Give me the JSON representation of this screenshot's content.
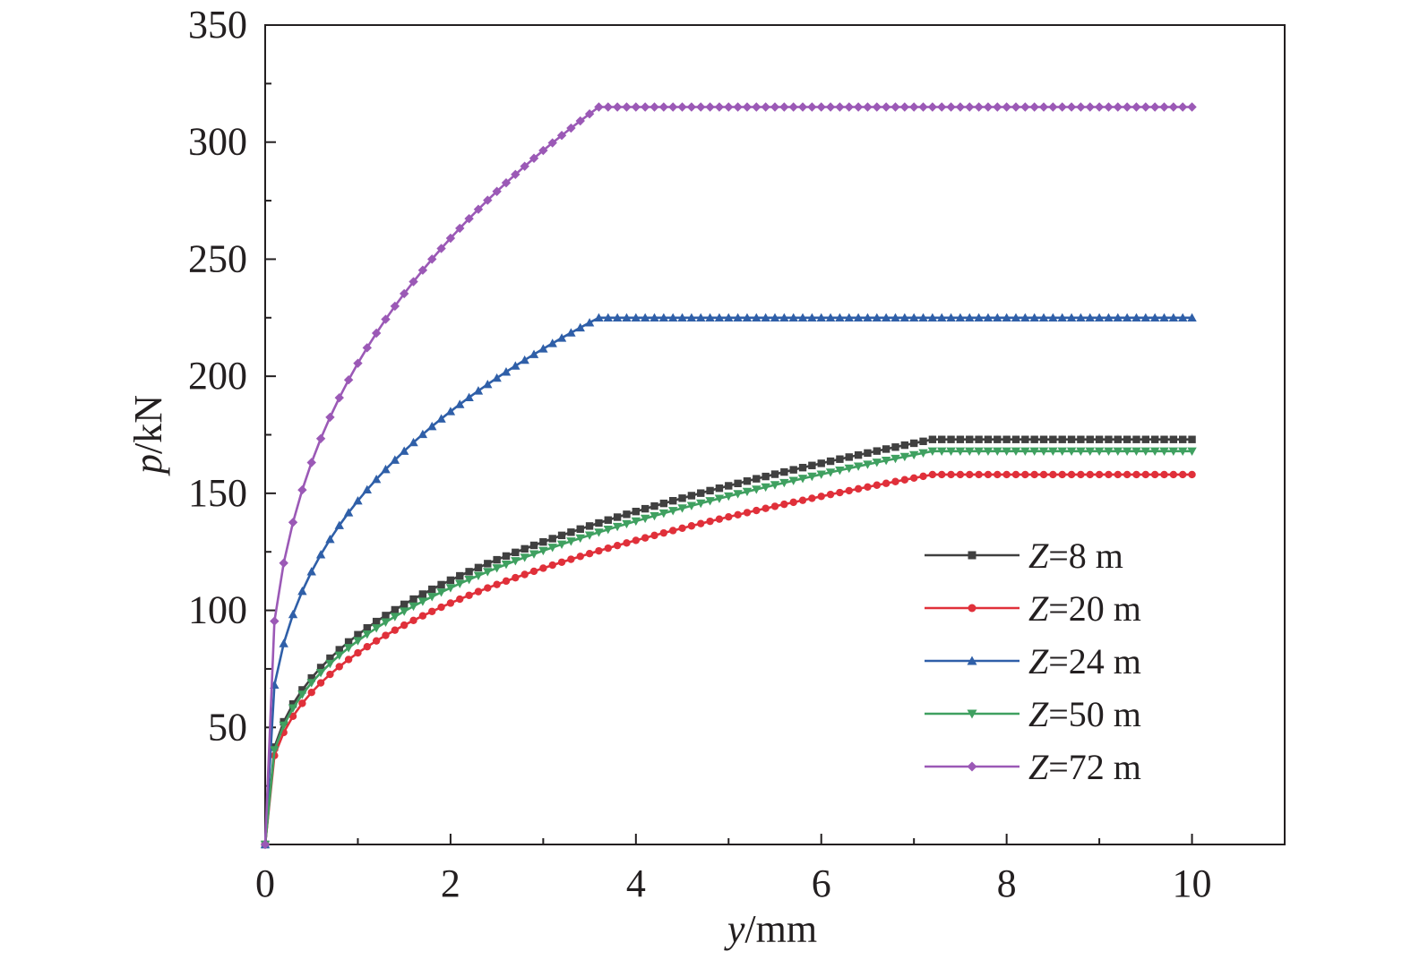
{
  "chart_data": {
    "type": "line",
    "title": "",
    "xlabel": {
      "var": "y",
      "unit": "/mm"
    },
    "ylabel": {
      "var": "p",
      "unit": "/kN"
    },
    "xlim": [
      0,
      11
    ],
    "ylim": [
      0,
      350
    ],
    "x_ticks": [
      0,
      2,
      4,
      6,
      8,
      10
    ],
    "x_tick_labels": [
      "0",
      "2",
      "4",
      "6",
      "8",
      "10"
    ],
    "y_ticks": [
      50,
      100,
      150,
      200,
      250,
      300,
      350
    ],
    "y_tick_labels": [
      "50",
      "100",
      "150",
      "200",
      "250",
      "300",
      "350"
    ],
    "grid": false,
    "legend_position": "right",
    "series": [
      {
        "name": "Z=8 m",
        "legend_var": "Z",
        "legend_rest": "=8 m",
        "color": "#404040",
        "marker": "square",
        "ult": 173,
        "yield_disp": 7.2,
        "n": 0.3333,
        "step": 0.1
      },
      {
        "name": "Z=20 m",
        "legend_var": "Z",
        "legend_rest": "=20 m",
        "color": "#e0303a",
        "marker": "circle",
        "ult": 158,
        "yield_disp": 7.2,
        "n": 0.3333,
        "step": 0.1
      },
      {
        "name": "Z=24 m",
        "legend_var": "Z",
        "legend_rest": "=24 m",
        "color": "#2f5fa8",
        "marker": "triangle-up",
        "ult": 225,
        "yield_disp": 3.6,
        "n": 0.3333,
        "step": 0.1
      },
      {
        "name": "Z=50 m",
        "legend_var": "Z",
        "legend_rest": "=50 m",
        "color": "#3fa060",
        "marker": "triangle-down",
        "ult": 168,
        "yield_disp": 7.2,
        "n": 0.3333,
        "step": 0.1
      },
      {
        "name": "Z=72 m",
        "legend_var": "Z",
        "legend_rest": "=72 m",
        "color": "#9b59b6",
        "marker": "diamond",
        "ult": 315,
        "yield_disp": 3.6,
        "n": 0.3333,
        "step": 0.1
      }
    ]
  }
}
